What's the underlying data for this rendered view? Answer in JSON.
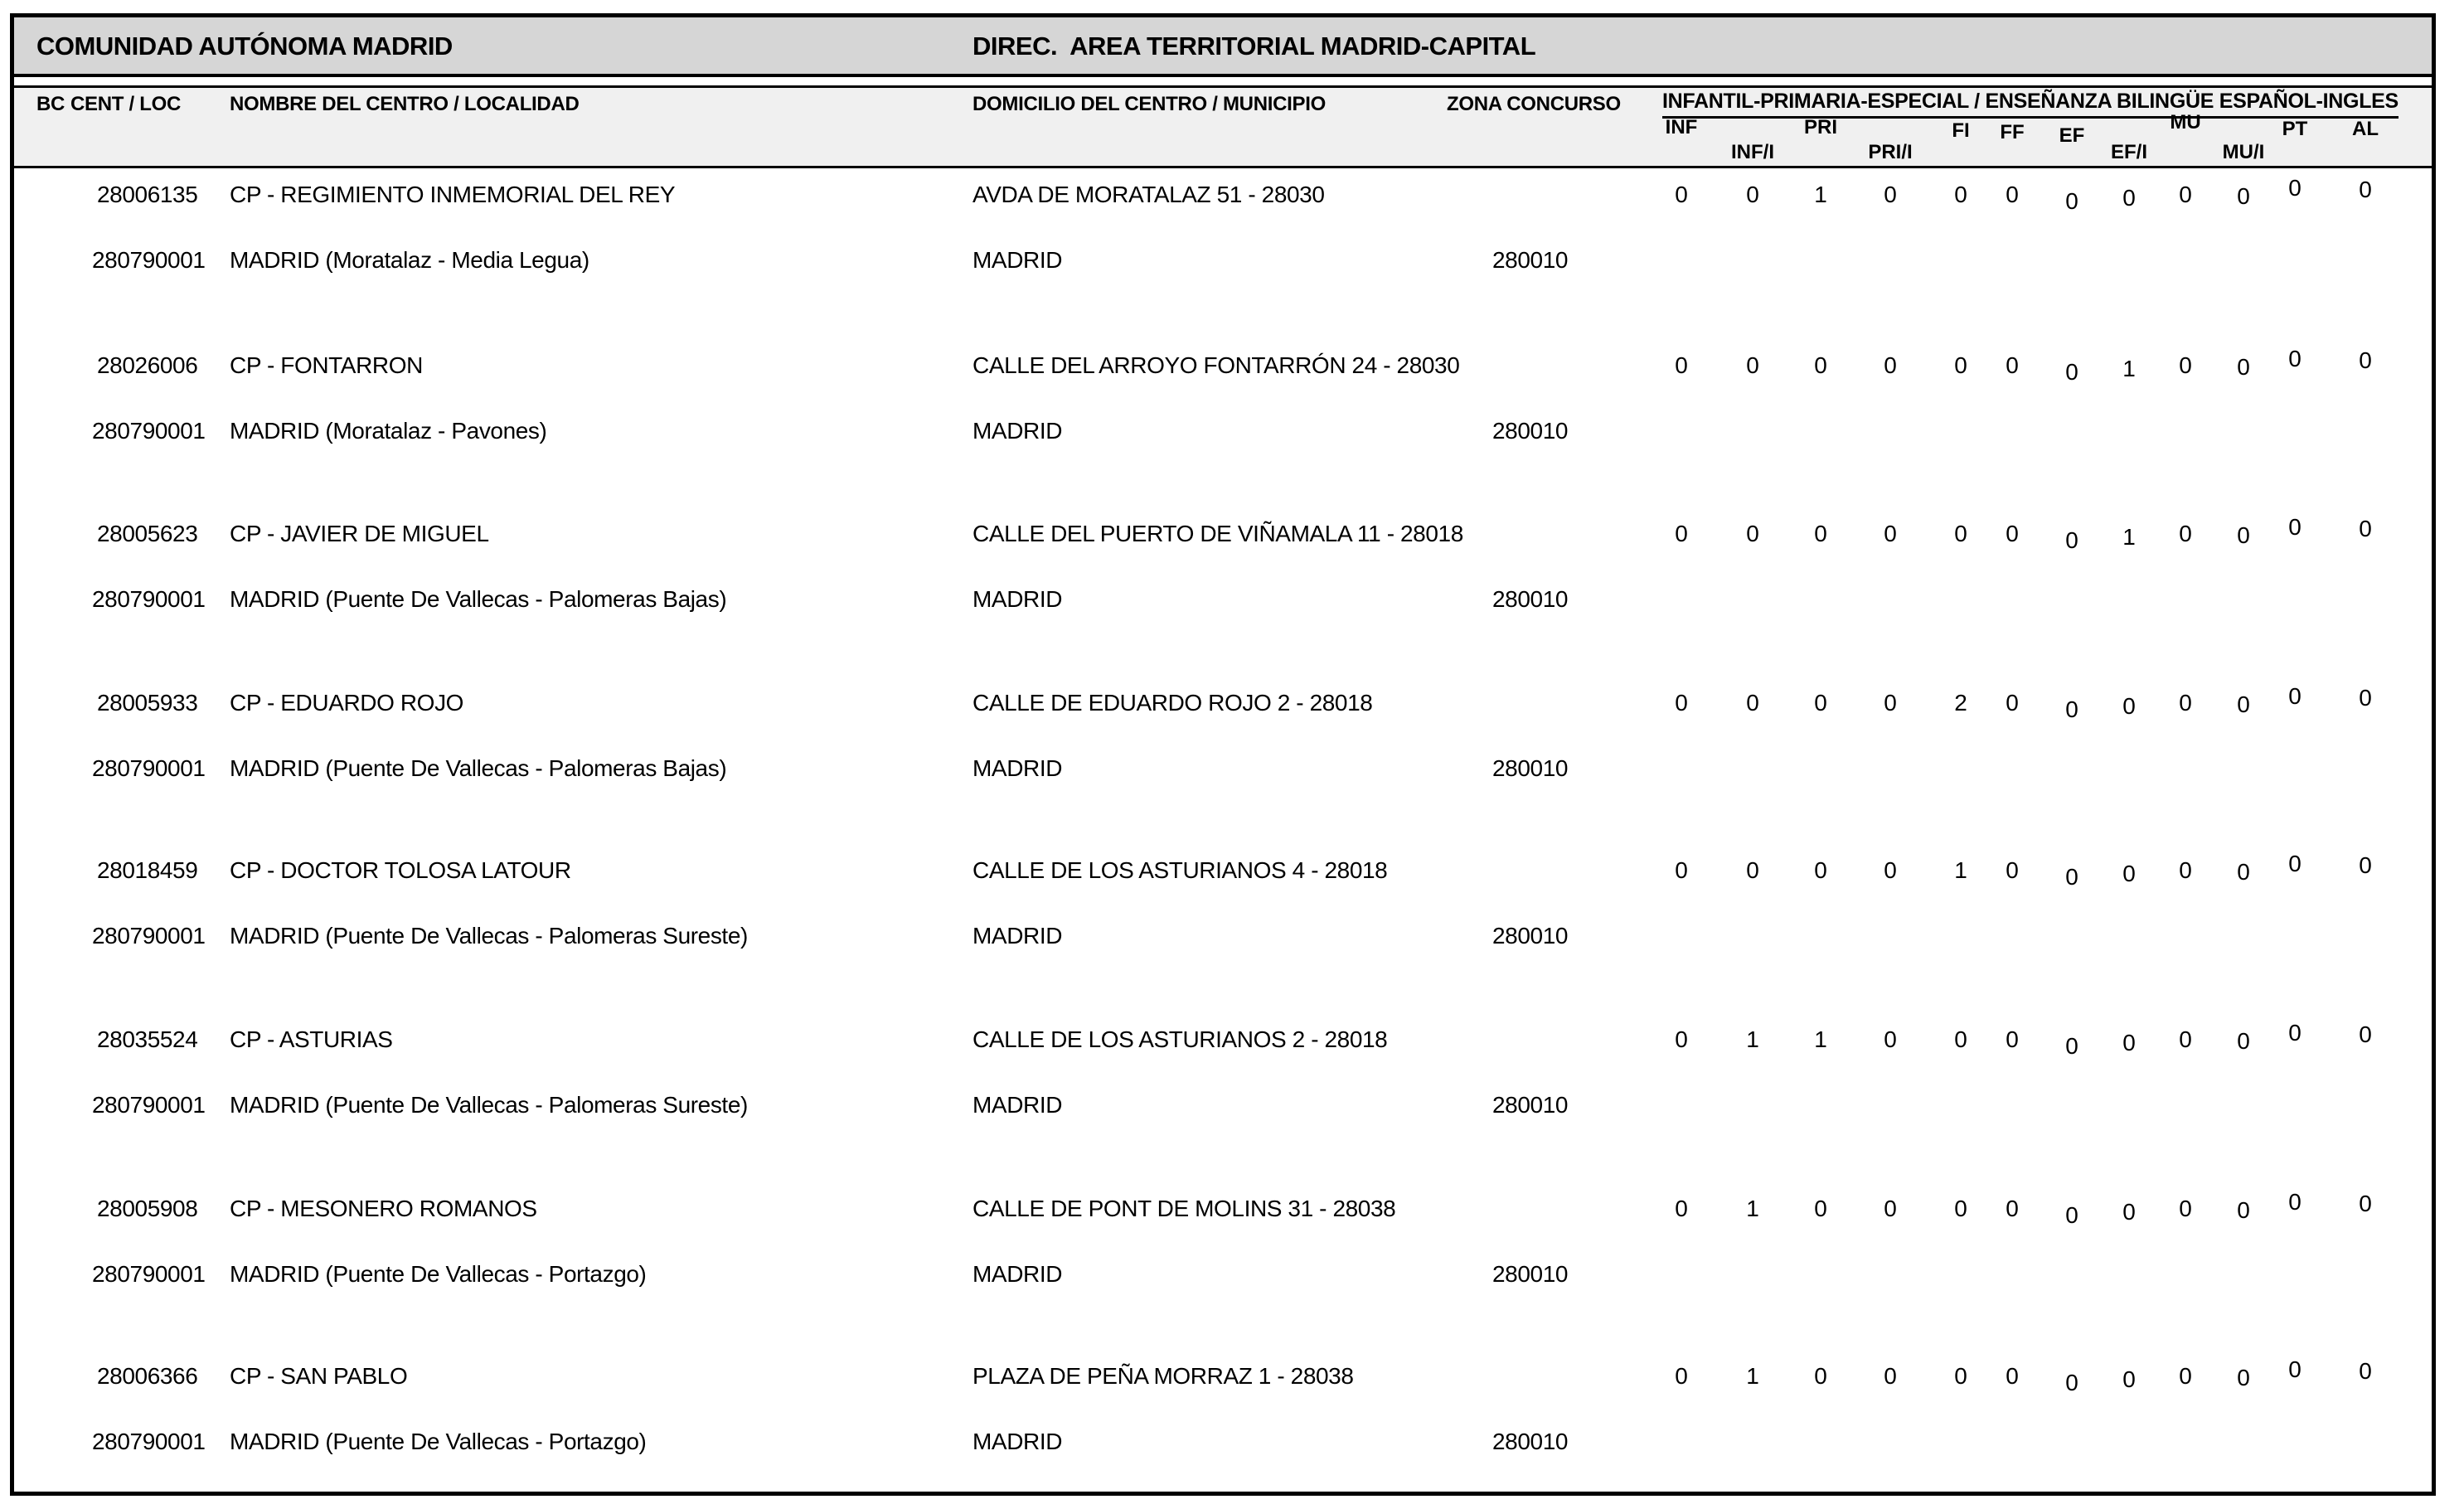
{
  "header": {
    "region_title": "COMUNIDAD AUTÓNOMA MADRID",
    "direction_title": "DIREC.  AREA TERRITORIAL MADRID-CAPITAL"
  },
  "columns": {
    "bc": "BC",
    "cent_loc": "CENT / LOC",
    "nombre": "NOMBRE DEL CENTRO / LOCALIDAD",
    "domicilio": "DOMICILIO DEL CENTRO / MUNICIPIO",
    "zona": "ZONA CONCURSO",
    "group_title": "INFANTIL-PRIMARIA-ESPECIAL / ENSEÑANZA BILINGÜE ESPAÑOL-INGLES",
    "subcolumns": [
      "INF",
      "INF/I",
      "PRI",
      "PRI/I",
      "FI",
      "FF",
      "EF",
      "EF/I",
      "MU",
      "MU/I",
      "PT",
      "AL"
    ]
  },
  "table": {
    "rows": [
      {
        "cent": "28006135",
        "nombre": "CP - REGIMIENTO INMEMORIAL DEL REY",
        "domicilio": "AVDA DE MORATALAZ 51 - 28030",
        "loc": "280790001",
        "localidad": "MADRID (Moratalaz - Media Legua)",
        "municipio": "MADRID",
        "zona": "280010",
        "values": [
          "0",
          "0",
          "1",
          "0",
          "0",
          "0",
          "0",
          "0",
          "0",
          "0",
          "0",
          "0"
        ]
      },
      {
        "cent": "28026006",
        "nombre": "CP - FONTARRON",
        "domicilio": "CALLE DEL ARROYO FONTARRÓN 24 - 28030",
        "loc": "280790001",
        "localidad": "MADRID (Moratalaz - Pavones)",
        "municipio": "MADRID",
        "zona": "280010",
        "values": [
          "0",
          "0",
          "0",
          "0",
          "0",
          "0",
          "0",
          "1",
          "0",
          "0",
          "0",
          "0"
        ]
      },
      {
        "cent": "28005623",
        "nombre": "CP - JAVIER DE MIGUEL",
        "domicilio": "CALLE DEL PUERTO DE VIÑAMALA 11 - 28018",
        "loc": "280790001",
        "localidad": "MADRID (Puente De Vallecas - Palomeras Bajas)",
        "municipio": "MADRID",
        "zona": "280010",
        "values": [
          "0",
          "0",
          "0",
          "0",
          "0",
          "0",
          "0",
          "1",
          "0",
          "0",
          "0",
          "0"
        ]
      },
      {
        "cent": "28005933",
        "nombre": "CP - EDUARDO ROJO",
        "domicilio": "CALLE DE EDUARDO ROJO 2 - 28018",
        "loc": "280790001",
        "localidad": "MADRID (Puente De Vallecas - Palomeras Bajas)",
        "municipio": "MADRID",
        "zona": "280010",
        "values": [
          "0",
          "0",
          "0",
          "0",
          "2",
          "0",
          "0",
          "0",
          "0",
          "0",
          "0",
          "0"
        ]
      },
      {
        "cent": "28018459",
        "nombre": "CP - DOCTOR TOLOSA LATOUR",
        "domicilio": "CALLE DE LOS ASTURIANOS 4 - 28018",
        "loc": "280790001",
        "localidad": "MADRID (Puente De Vallecas - Palomeras Sureste)",
        "municipio": "MADRID",
        "zona": "280010",
        "values": [
          "0",
          "0",
          "0",
          "0",
          "1",
          "0",
          "0",
          "0",
          "0",
          "0",
          "0",
          "0"
        ]
      },
      {
        "cent": "28035524",
        "nombre": "CP - ASTURIAS",
        "domicilio": "CALLE DE LOS ASTURIANOS 2 - 28018",
        "loc": "280790001",
        "localidad": "MADRID (Puente De Vallecas - Palomeras Sureste)",
        "municipio": "MADRID",
        "zona": "280010",
        "values": [
          "0",
          "1",
          "1",
          "0",
          "0",
          "0",
          "0",
          "0",
          "0",
          "0",
          "0",
          "0"
        ]
      },
      {
        "cent": "28005908",
        "nombre": "CP - MESONERO ROMANOS",
        "domicilio": "CALLE DE PONT DE MOLINS 31 - 28038",
        "loc": "280790001",
        "localidad": "MADRID (Puente De Vallecas - Portazgo)",
        "municipio": "MADRID",
        "zona": "280010",
        "values": [
          "0",
          "1",
          "0",
          "0",
          "0",
          "0",
          "0",
          "0",
          "0",
          "0",
          "0",
          "0"
        ]
      },
      {
        "cent": "28006366",
        "nombre": "CP - SAN PABLO",
        "domicilio": "PLAZA DE PEÑA MORRAZ 1 - 28038",
        "loc": "280790001",
        "localidad": "MADRID (Puente De Vallecas - Portazgo)",
        "municipio": "MADRID",
        "zona": "280010",
        "values": [
          "0",
          "1",
          "0",
          "0",
          "0",
          "0",
          "0",
          "0",
          "0",
          "0",
          "0",
          "0"
        ]
      }
    ]
  },
  "colors": {
    "page_bg": "#ffffff",
    "header_band_bg": "#d6d6d6",
    "column_band_bg": "#f0f0f0",
    "border": "#000000",
    "text": "#000000"
  }
}
